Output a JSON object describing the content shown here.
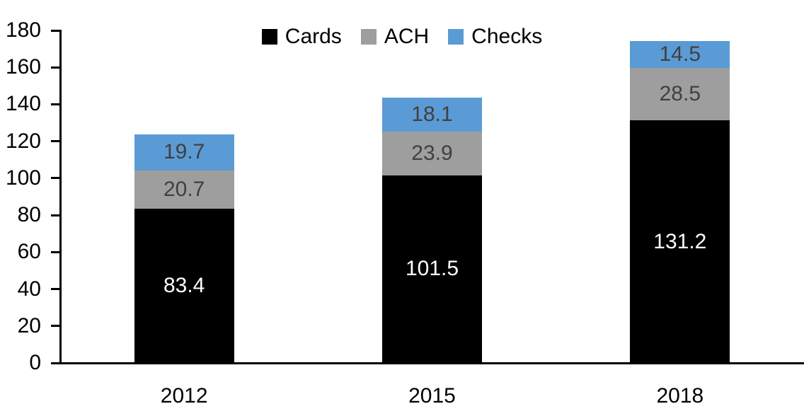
{
  "chart_data": {
    "type": "bar",
    "stacked": true,
    "title": "",
    "xlabel": "",
    "ylabel": "",
    "categories": [
      "2012",
      "2015",
      "2018"
    ],
    "series": [
      {
        "name": "Cards",
        "color": "#000000",
        "label_color": "#ffffff",
        "values": [
          83.4,
          101.5,
          131.2
        ]
      },
      {
        "name": "ACH",
        "color": "#9e9e9e",
        "label_color": "#404040",
        "values": [
          20.7,
          23.9,
          28.5
        ]
      },
      {
        "name": "Checks",
        "color": "#5b9bd5",
        "label_color": "#404040",
        "values": [
          19.7,
          18.1,
          14.5
        ]
      }
    ],
    "ylim": [
      0,
      180
    ],
    "yticks": [
      0,
      20,
      40,
      60,
      80,
      100,
      120,
      140,
      160,
      180
    ],
    "grid": false,
    "legend_position": "top",
    "axis_color": "#000000"
  }
}
